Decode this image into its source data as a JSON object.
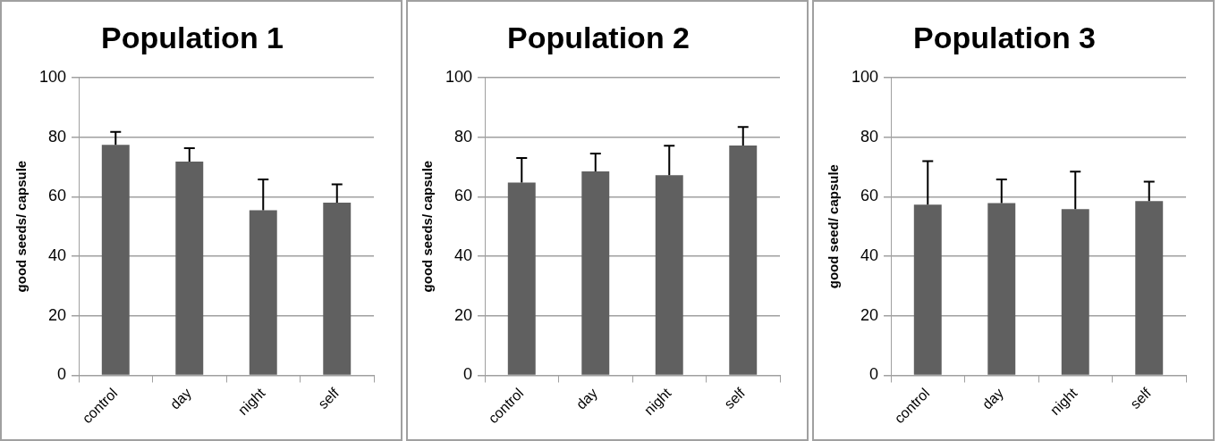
{
  "chart_data": [
    {
      "type": "bar",
      "title": "Population 1",
      "ylabel": "good seeds/ capsule",
      "categories": [
        "control",
        "day",
        "night",
        "self"
      ],
      "values": [
        77.4,
        71.8,
        55.4,
        58
      ],
      "errors": [
        [
          77.4,
          81.7
        ],
        [
          71.8,
          76.3
        ],
        [
          55.4,
          65.8
        ],
        [
          58,
          64.1
        ]
      ],
      "color": "#606060",
      "ylim": [
        0,
        100
      ],
      "yticks": [
        0,
        20,
        40,
        60,
        80,
        100
      ],
      "grid": "y",
      "legend": false
    },
    {
      "type": "bar",
      "title": "Population 2",
      "ylabel": "good seeds/ capsule",
      "categories": [
        "control",
        "day",
        "night",
        "self"
      ],
      "values": [
        64.7,
        68.5,
        67.2,
        77.2
      ],
      "errors": [
        [
          64.7,
          73
        ],
        [
          68.5,
          74.5
        ],
        [
          67.2,
          77.1
        ],
        [
          77.2,
          83.4
        ]
      ],
      "color": "#606060",
      "ylim": [
        0,
        100
      ],
      "yticks": [
        0,
        20,
        40,
        60,
        80,
        100
      ],
      "grid": "y",
      "legend": false
    },
    {
      "type": "bar",
      "title": "Population 3",
      "ylabel": "good seed/ capsule",
      "categories": [
        "control",
        "day",
        "night",
        "self"
      ],
      "values": [
        57.3,
        57.8,
        55.8,
        58.5
      ],
      "errors": [
        [
          57.3,
          71.9
        ],
        [
          57.8,
          65.8
        ],
        [
          55.8,
          68.4
        ],
        [
          58.5,
          65
        ]
      ],
      "color": "#606060",
      "ylim": [
        0,
        100
      ],
      "yticks": [
        0,
        20,
        40,
        60,
        80,
        100
      ],
      "grid": "y",
      "legend": false
    }
  ]
}
